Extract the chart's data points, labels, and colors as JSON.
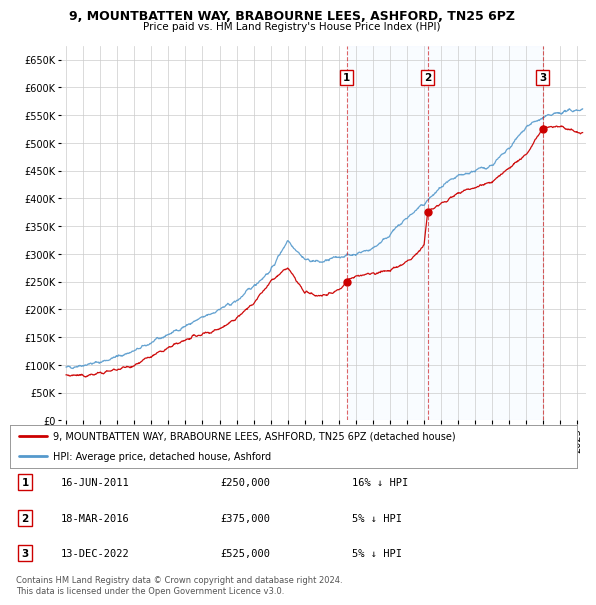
{
  "title": "9, MOUNTBATTEN WAY, BRABOURNE LEES, ASHFORD, TN25 6PZ",
  "subtitle": "Price paid vs. HM Land Registry's House Price Index (HPI)",
  "ylabel_vals": [
    0,
    50000,
    100000,
    150000,
    200000,
    250000,
    300000,
    350000,
    400000,
    450000,
    500000,
    550000,
    600000,
    650000
  ],
  "ylim": [
    0,
    675000
  ],
  "xlim_start": 1994.7,
  "xlim_end": 2025.5,
  "sale_dates": [
    2011.46,
    2016.21,
    2022.96
  ],
  "sale_prices": [
    250000,
    375000,
    525000
  ],
  "sale_labels": [
    "1",
    "2",
    "3"
  ],
  "legend_line1": "9, MOUNTBATTEN WAY, BRABOURNE LEES, ASHFORD, TN25 6PZ (detached house)",
  "legend_line2": "HPI: Average price, detached house, Ashford",
  "table_data": [
    [
      "1",
      "16-JUN-2011",
      "£250,000",
      "16% ↓ HPI"
    ],
    [
      "2",
      "18-MAR-2016",
      "£375,000",
      "5% ↓ HPI"
    ],
    [
      "3",
      "13-DEC-2022",
      "£525,000",
      "5% ↓ HPI"
    ]
  ],
  "footnote": "Contains HM Land Registry data © Crown copyright and database right 2024.\nThis data is licensed under the Open Government Licence v3.0.",
  "line_color_red": "#cc0000",
  "line_color_blue": "#5599cc",
  "fill_color_blue": "#ddeeff",
  "vline_color": "#cc0000",
  "background_color": "#ffffff",
  "grid_color": "#cccccc",
  "hpi_anchors_x": [
    1995,
    1997,
    1999,
    2001,
    2003,
    2005,
    2007,
    2008,
    2009,
    2010,
    2011,
    2012,
    2013,
    2014,
    2015,
    2016,
    2017,
    2018,
    2019,
    2020,
    2021,
    2022,
    2023,
    2024,
    2025
  ],
  "hpi_anchors_y": [
    95000,
    105000,
    125000,
    155000,
    185000,
    215000,
    270000,
    325000,
    290000,
    285000,
    295000,
    300000,
    310000,
    335000,
    365000,
    390000,
    420000,
    440000,
    450000,
    460000,
    490000,
    530000,
    545000,
    555000,
    560000
  ],
  "prop_anchors_x": [
    1995,
    1996,
    1997,
    1998,
    1999,
    2000,
    2001,
    2002,
    2003,
    2004,
    2005,
    2006,
    2007,
    2008,
    2009,
    2010,
    2011,
    2011.46,
    2011.5,
    2012,
    2013,
    2014,
    2015,
    2016,
    2016.21,
    2016.25,
    2017,
    2018,
    2019,
    2020,
    2021,
    2022,
    2022.96,
    2023.0,
    2024,
    2025
  ],
  "prop_anchors_y": [
    82000,
    80000,
    85000,
    92000,
    100000,
    115000,
    130000,
    145000,
    155000,
    165000,
    185000,
    210000,
    250000,
    275000,
    230000,
    225000,
    235000,
    250000,
    252000,
    260000,
    265000,
    270000,
    285000,
    315000,
    375000,
    378000,
    390000,
    410000,
    420000,
    430000,
    455000,
    480000,
    525000,
    527000,
    530000,
    520000
  ]
}
